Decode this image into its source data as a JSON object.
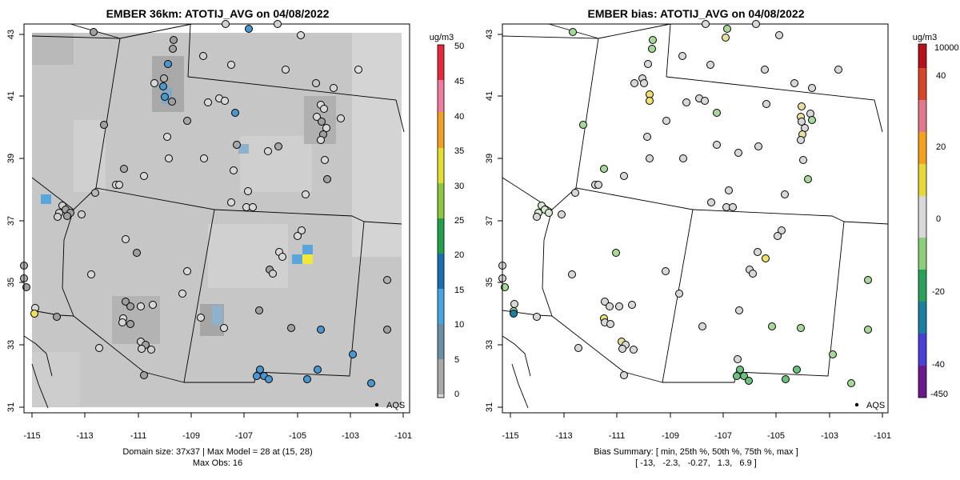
{
  "left_panel": {
    "title": "EMBER 36km: ATOTIJ_AVG on 04/08/2022",
    "footer_line1": "Domain size: 37x37 | Max Model = 28 at (15, 28)",
    "footer_line2": "Max Obs: 16",
    "legend_label": "AQS",
    "colorbar": {
      "unit": "ug/m3",
      "ticks": [
        "0",
        "5",
        "10",
        "15",
        "20",
        "25",
        "30",
        "35",
        "40",
        "45",
        "50"
      ],
      "colors": [
        "#d9d9d9",
        "#9f9f9f",
        "#6c8fa8",
        "#47a6df",
        "#1a6fb3",
        "#22a04a",
        "#8dc63f",
        "#e3df30",
        "#f2a120",
        "#f26a4a",
        "#e8283c"
      ]
    }
  },
  "right_panel": {
    "title": "EMBER bias: ATOTIJ_AVG on 04/08/2022",
    "footer_line1": "Bias Summary: [ min, 25th %, 50th %, 75th %, max ]",
    "footer_line2": "[ -13,   -2.3,   -0.27,   1.3,   6.9 ]",
    "legend_label": "AQS",
    "colorbar": {
      "unit": "ug/m3",
      "ticks": [
        "10000",
        "40",
        "20",
        "0",
        "-20",
        "-40",
        "-450"
      ],
      "colors": [
        "#b5121b",
        "#e05a2a",
        "#f2a21f",
        "#e8d83a",
        "#d8d8d8",
        "#8ccf7a",
        "#2aa05a",
        "#1a7fa0",
        "#2a58d8",
        "#7a3ad8",
        "#6a1a8a"
      ]
    }
  },
  "axes": {
    "x_ticks": [
      "-115",
      "-113",
      "-111",
      "-109",
      "-107",
      "-105",
      "-103",
      "-101"
    ],
    "y_ticks": [
      "43",
      "41",
      "39",
      "37",
      "35",
      "33",
      "31"
    ]
  },
  "colors": {
    "obs_default": "#d8d8d8",
    "obs_blue": "#4a97cf",
    "obs_gray": "#a0a0a0",
    "bias_green": "#a6d89a",
    "bias_yellow": "#f0e070"
  }
}
